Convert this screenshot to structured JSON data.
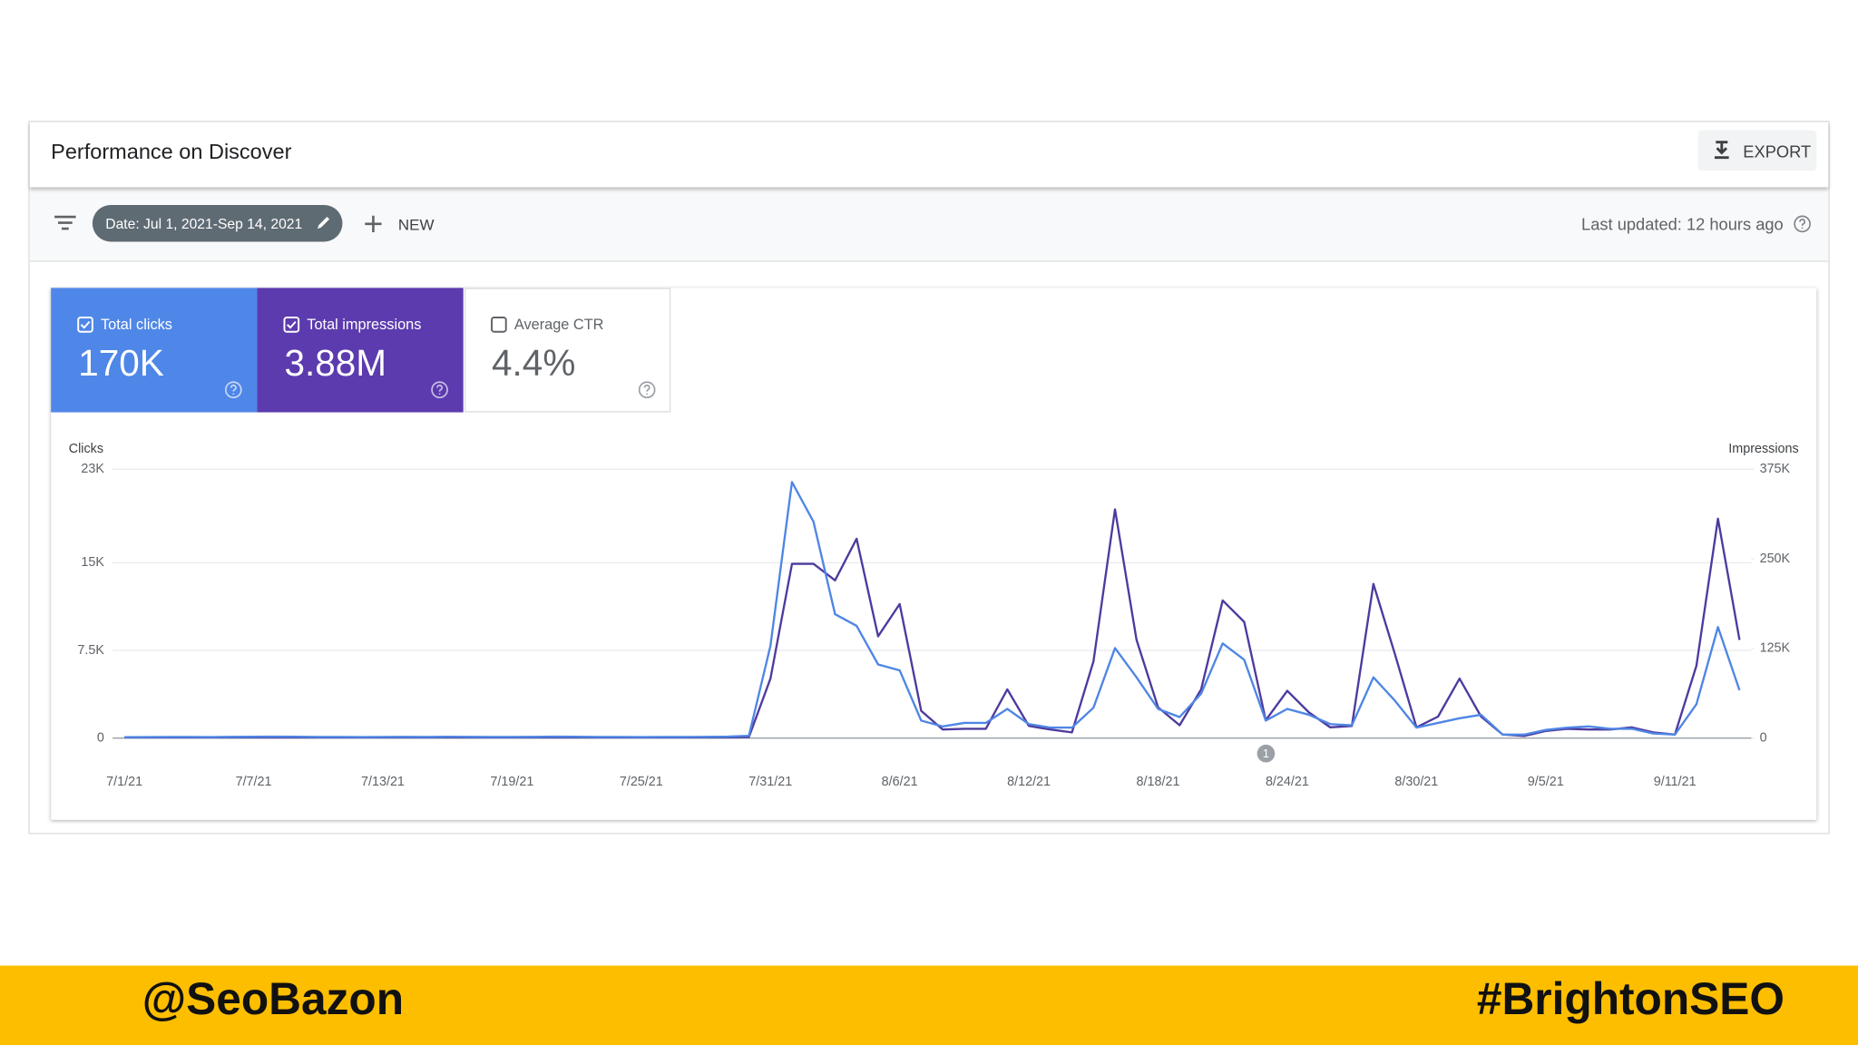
{
  "header": {
    "title": "Performance on Discover",
    "export": "EXPORT"
  },
  "filters": {
    "date": "Date: Jul 1, 2021-Sep 14, 2021",
    "new": "NEW",
    "last_updated": "Last updated: 12 hours ago"
  },
  "metrics": [
    {
      "label": "Total clicks",
      "value": "170K"
    },
    {
      "label": "Total impressions",
      "value": "3.88M"
    },
    {
      "label": "Average CTR",
      "value": "4.4%"
    }
  ],
  "chart_data": {
    "type": "line",
    "ylabel": "Clicks",
    "y2label": "Impressions",
    "categories": [
      "7/1/21",
      null,
      null,
      null,
      null,
      null,
      "7/7/21",
      null,
      null,
      null,
      null,
      null,
      "7/13/21",
      null,
      null,
      null,
      null,
      null,
      "7/19/21",
      null,
      null,
      null,
      null,
      null,
      "7/25/21",
      null,
      null,
      null,
      null,
      null,
      "7/31/21",
      null,
      null,
      null,
      null,
      null,
      "8/6/21",
      null,
      null,
      null,
      null,
      null,
      "8/12/21",
      null,
      null,
      null,
      null,
      null,
      "8/18/21",
      null,
      null,
      null,
      null,
      null,
      "8/24/21",
      null,
      null,
      null,
      null,
      null,
      "8/30/21",
      null,
      null,
      null,
      null,
      null,
      "9/5/21",
      null,
      null,
      null,
      null,
      null,
      "9/11/21",
      null,
      null,
      null
    ],
    "series": [
      {
        "name": "Clicks",
        "color": "#4f86e4",
        "axis": "y",
        "values": [
          80,
          90,
          100,
          100,
          90,
          110,
          120,
          130,
          120,
          100,
          100,
          90,
          100,
          110,
          100,
          120,
          110,
          100,
          100,
          110,
          130,
          120,
          100,
          100,
          90,
          100,
          100,
          110,
          130,
          200,
          7900,
          21900,
          18500,
          10600,
          9600,
          6300,
          5800,
          1500,
          1000,
          1300,
          1300,
          2500,
          1200,
          900,
          900,
          2600,
          7700,
          5200,
          2500,
          1800,
          3800,
          8100,
          6700,
          1500,
          2500,
          2000,
          1200,
          1100,
          5200,
          3200,
          900,
          1300,
          1700,
          2000,
          300,
          300,
          700,
          900,
          1000,
          800,
          800,
          400,
          300,
          2900,
          9500,
          4100
        ]
      },
      {
        "name": "Impressions",
        "color": "#4e3a9e",
        "axis": "y2",
        "values": [
          1000,
          1000,
          1000,
          1000,
          1000,
          1000,
          1000,
          1000,
          1000,
          1000,
          1000,
          1000,
          1000,
          1000,
          1000,
          1000,
          1000,
          1000,
          1000,
          1000,
          1000,
          1000,
          1000,
          1000,
          1000,
          1000,
          1000,
          1000,
          1000,
          1500,
          83000,
          243000,
          243000,
          220000,
          278000,
          142000,
          187000,
          38000,
          12000,
          13000,
          13000,
          68000,
          17000,
          12000,
          8000,
          107000,
          319000,
          137000,
          43000,
          18000,
          68000,
          192000,
          162000,
          25000,
          66000,
          36000,
          15000,
          17000,
          215000,
          117000,
          15000,
          30000,
          83000,
          30000,
          5000,
          3000,
          10000,
          13000,
          12000,
          12000,
          15000,
          8000,
          5000,
          101000,
          306000,
          137000
        ]
      }
    ],
    "ylim": [
      0,
      23000
    ],
    "yticks": [
      0,
      {
        "value": 7500,
        "label": "7.5K"
      },
      {
        "value": 15000,
        "label": "15K"
      },
      {
        "value": 23000,
        "label": "23K"
      }
    ],
    "y2lim": [
      0,
      375000
    ],
    "y2ticks": [
      0,
      {
        "value": 125000,
        "label": "125K"
      },
      {
        "value": 250000,
        "label": "250K"
      },
      {
        "value": 375000,
        "label": "375K"
      }
    ],
    "grid": true,
    "annotations": [
      {
        "text": "1",
        "category": "8/24/21"
      }
    ]
  },
  "footer": {
    "left": "@SeoBazon",
    "right": "#BrightonSEO"
  }
}
